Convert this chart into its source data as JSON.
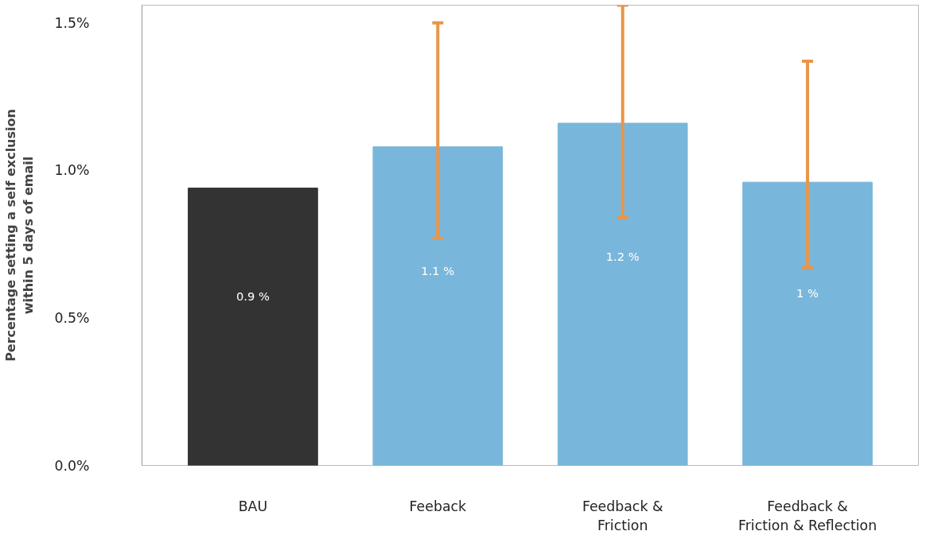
{
  "chart_data": {
    "type": "bar",
    "ylabel": "Percentage setting a self exclusion\nwithin 5 days of email",
    "categories": [
      "BAU",
      "Feeback",
      "Feedback &\nFriction",
      "Feedback &\nFriction & Reflection"
    ],
    "values": [
      0.94,
      1.08,
      1.16,
      0.96
    ],
    "colors": [
      "#333333",
      "#79b6db",
      "#79b6db",
      "#79b6db"
    ],
    "errors": [
      null,
      [
        0.77,
        1.5
      ],
      [
        0.84,
        1.56
      ],
      [
        0.67,
        1.37
      ]
    ],
    "value_labels": [
      "0.9 %",
      "1.1 %",
      "1.2 %",
      "1 %"
    ],
    "ylim": [
      0,
      1.56
    ],
    "yticks": [
      {
        "value": 0,
        "label": "0.0%"
      },
      {
        "value": 0.5,
        "label": "0.5%"
      },
      {
        "value": 1,
        "label": "1.0%"
      },
      {
        "value": 1.5,
        "label": "1.5%"
      }
    ],
    "grid": false
  }
}
